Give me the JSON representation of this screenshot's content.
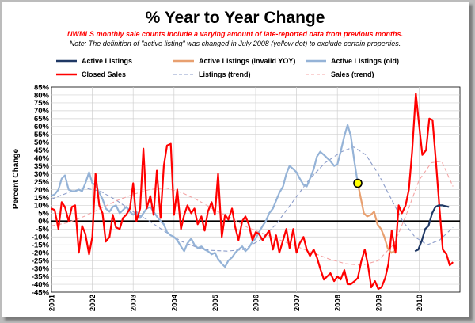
{
  "chart_data": {
    "type": "line",
    "title": "% Year to Year Change",
    "subtitle_note": "NWMLS monthly sale counts include a varying amount of late-reported data from previous months.",
    "definition_note": "Note: The definition of \"active listing\" was changed in July 2008  (yellow dot) to exclude certain properties.",
    "ylabel": "Percent Change",
    "xlabel": "",
    "ylim": [
      -45,
      85
    ],
    "yticks": [
      "85%",
      "80%",
      "75%",
      "70%",
      "65%",
      "60%",
      "55%",
      "50%",
      "45%",
      "40%",
      "35%",
      "30%",
      "25%",
      "20%",
      "15%",
      "10%",
      "5%",
      "0%",
      "-5%",
      "-10%",
      "-15%",
      "-20%",
      "-25%",
      "-30%",
      "-35%",
      "-40%",
      "-45%"
    ],
    "xticks": [
      "2001",
      "2002",
      "2003",
      "2004",
      "2005",
      "2006",
      "2007",
      "2008",
      "2009",
      "2010"
    ],
    "xlim": [
      2001.0,
      2011.0
    ],
    "grid": true,
    "legend_placement": "top",
    "series": [
      {
        "name": "Active Listings",
        "color": "#1f3864",
        "style": "solid",
        "points": [
          [
            2009.9,
            -19
          ],
          [
            2009.98,
            -18
          ],
          [
            2010.07,
            -12
          ],
          [
            2010.15,
            -5
          ],
          [
            2010.23,
            -3
          ],
          [
            2010.32,
            5
          ],
          [
            2010.4,
            9
          ],
          [
            2010.48,
            10
          ],
          [
            2010.57,
            10
          ],
          [
            2010.65,
            9.5
          ],
          [
            2010.73,
            9
          ]
        ]
      },
      {
        "name": "Active Listings (invalid YOY)",
        "color": "#e8a070",
        "style": "solid",
        "points": [
          [
            2008.5,
            24
          ],
          [
            2008.57,
            15
          ],
          [
            2008.65,
            5
          ],
          [
            2008.73,
            3
          ],
          [
            2008.82,
            4
          ],
          [
            2008.9,
            6
          ],
          [
            2008.98,
            -2
          ],
          [
            2009.07,
            -5
          ],
          [
            2009.15,
            -10
          ],
          [
            2009.23,
            -17
          ],
          [
            2009.32,
            -20
          ],
          [
            2009.4,
            -19
          ]
        ]
      },
      {
        "name": "Active Listings (old)",
        "color": "#95b3d7",
        "style": "solid",
        "points": [
          [
            2001.0,
            16
          ],
          [
            2001.08,
            17
          ],
          [
            2001.17,
            20
          ],
          [
            2001.25,
            27
          ],
          [
            2001.33,
            29
          ],
          [
            2001.42,
            20
          ],
          [
            2001.5,
            19
          ],
          [
            2001.58,
            19
          ],
          [
            2001.67,
            20
          ],
          [
            2001.75,
            19
          ],
          [
            2001.83,
            24
          ],
          [
            2001.92,
            31
          ],
          [
            2002.0,
            24
          ],
          [
            2002.08,
            23
          ],
          [
            2002.17,
            18
          ],
          [
            2002.25,
            14
          ],
          [
            2002.33,
            8
          ],
          [
            2002.42,
            6
          ],
          [
            2002.5,
            9
          ],
          [
            2002.58,
            10
          ],
          [
            2002.67,
            5
          ],
          [
            2002.75,
            7
          ],
          [
            2002.83,
            9
          ],
          [
            2002.92,
            6
          ],
          [
            2003.0,
            4
          ],
          [
            2003.08,
            6
          ],
          [
            2003.17,
            2
          ],
          [
            2003.25,
            5
          ],
          [
            2003.33,
            8
          ],
          [
            2003.42,
            9
          ],
          [
            2003.5,
            6
          ],
          [
            2003.58,
            3
          ],
          [
            2003.67,
            0
          ],
          [
            2003.75,
            -2
          ],
          [
            2003.83,
            -7
          ],
          [
            2003.92,
            -9
          ],
          [
            2004.0,
            -10
          ],
          [
            2004.08,
            -12
          ],
          [
            2004.17,
            -16
          ],
          [
            2004.25,
            -19
          ],
          [
            2004.33,
            -14
          ],
          [
            2004.42,
            -11
          ],
          [
            2004.5,
            -15
          ],
          [
            2004.58,
            -17
          ],
          [
            2004.67,
            -16
          ],
          [
            2004.75,
            -18
          ],
          [
            2004.83,
            -19
          ],
          [
            2004.92,
            -21
          ],
          [
            2005.0,
            -20
          ],
          [
            2005.08,
            -24
          ],
          [
            2005.17,
            -27
          ],
          [
            2005.25,
            -29
          ],
          [
            2005.33,
            -25
          ],
          [
            2005.42,
            -23
          ],
          [
            2005.5,
            -20
          ],
          [
            2005.58,
            -18
          ],
          [
            2005.67,
            -16
          ],
          [
            2005.75,
            -19
          ],
          [
            2005.83,
            -17
          ],
          [
            2005.92,
            -13
          ],
          [
            2006.0,
            -11
          ],
          [
            2006.08,
            -7
          ],
          [
            2006.17,
            -3
          ],
          [
            2006.25,
            0
          ],
          [
            2006.33,
            5
          ],
          [
            2006.42,
            8
          ],
          [
            2006.5,
            13
          ],
          [
            2006.58,
            18
          ],
          [
            2006.67,
            22
          ],
          [
            2006.75,
            30
          ],
          [
            2006.83,
            35
          ],
          [
            2006.92,
            33
          ],
          [
            2007.0,
            31
          ],
          [
            2007.08,
            27
          ],
          [
            2007.17,
            23
          ],
          [
            2007.25,
            22
          ],
          [
            2007.33,
            27
          ],
          [
            2007.42,
            33
          ],
          [
            2007.5,
            41
          ],
          [
            2007.58,
            44
          ],
          [
            2007.67,
            42
          ],
          [
            2007.75,
            40
          ],
          [
            2007.83,
            38
          ],
          [
            2007.92,
            35
          ],
          [
            2008.0,
            36
          ],
          [
            2008.08,
            44
          ],
          [
            2008.17,
            54
          ],
          [
            2008.25,
            61
          ],
          [
            2008.33,
            54
          ],
          [
            2008.42,
            37
          ],
          [
            2008.5,
            24
          ]
        ]
      },
      {
        "name": "Closed Sales",
        "color": "#ff0000",
        "style": "solid",
        "points": [
          [
            2001.0,
            8
          ],
          [
            2001.08,
            7
          ],
          [
            2001.17,
            -5
          ],
          [
            2001.25,
            12
          ],
          [
            2001.33,
            9
          ],
          [
            2001.42,
            0
          ],
          [
            2001.5,
            9
          ],
          [
            2001.58,
            10
          ],
          [
            2001.67,
            -20
          ],
          [
            2001.75,
            -3
          ],
          [
            2001.83,
            -8
          ],
          [
            2001.92,
            -21
          ],
          [
            2002.0,
            -10
          ],
          [
            2002.08,
            30
          ],
          [
            2002.17,
            10
          ],
          [
            2002.25,
            5
          ],
          [
            2002.33,
            -13
          ],
          [
            2002.42,
            -10
          ],
          [
            2002.5,
            4
          ],
          [
            2002.58,
            -4
          ],
          [
            2002.67,
            -5
          ],
          [
            2002.75,
            2
          ],
          [
            2002.83,
            4
          ],
          [
            2002.92,
            8
          ],
          [
            2003.0,
            24
          ],
          [
            2003.08,
            0
          ],
          [
            2003.17,
            8
          ],
          [
            2003.25,
            46
          ],
          [
            2003.33,
            8
          ],
          [
            2003.42,
            16
          ],
          [
            2003.5,
            4
          ],
          [
            2003.58,
            32
          ],
          [
            2003.67,
            2
          ],
          [
            2003.75,
            35
          ],
          [
            2003.83,
            48
          ],
          [
            2003.92,
            49
          ],
          [
            2004.0,
            4
          ],
          [
            2004.08,
            20
          ],
          [
            2004.17,
            -5
          ],
          [
            2004.25,
            4
          ],
          [
            2004.33,
            10
          ],
          [
            2004.42,
            5
          ],
          [
            2004.5,
            8
          ],
          [
            2004.58,
            -2
          ],
          [
            2004.67,
            3
          ],
          [
            2004.75,
            -6
          ],
          [
            2004.83,
            6
          ],
          [
            2004.92,
            12
          ],
          [
            2005.0,
            4
          ],
          [
            2005.08,
            30
          ],
          [
            2005.17,
            -10
          ],
          [
            2005.25,
            4
          ],
          [
            2005.33,
            1
          ],
          [
            2005.42,
            8
          ],
          [
            2005.5,
            -4
          ],
          [
            2005.58,
            -12
          ],
          [
            2005.67,
            0
          ],
          [
            2005.75,
            3
          ],
          [
            2005.83,
            -2
          ],
          [
            2005.92,
            -12
          ],
          [
            2006.0,
            -7
          ],
          [
            2006.08,
            -8
          ],
          [
            2006.17,
            -12
          ],
          [
            2006.25,
            -9
          ],
          [
            2006.33,
            -6
          ],
          [
            2006.42,
            -18
          ],
          [
            2006.5,
            -9
          ],
          [
            2006.58,
            -20
          ],
          [
            2006.67,
            -12
          ],
          [
            2006.75,
            -5
          ],
          [
            2006.83,
            -17
          ],
          [
            2006.92,
            -5
          ],
          [
            2007.0,
            -20
          ],
          [
            2007.08,
            -14
          ],
          [
            2007.17,
            -10
          ],
          [
            2007.25,
            -18
          ],
          [
            2007.33,
            -22
          ],
          [
            2007.42,
            -18
          ],
          [
            2007.5,
            -23
          ],
          [
            2007.58,
            -30
          ],
          [
            2007.67,
            -37
          ],
          [
            2007.75,
            -35
          ],
          [
            2007.83,
            -33
          ],
          [
            2007.92,
            -38
          ],
          [
            2008.0,
            -35
          ],
          [
            2008.08,
            -37
          ],
          [
            2008.17,
            -31
          ],
          [
            2008.25,
            -40
          ],
          [
            2008.33,
            -40
          ],
          [
            2008.42,
            -38
          ],
          [
            2008.5,
            -36
          ],
          [
            2008.58,
            -26
          ],
          [
            2008.67,
            -18
          ],
          [
            2008.75,
            -28
          ],
          [
            2008.83,
            -42
          ],
          [
            2008.92,
            -38
          ],
          [
            2009.0,
            -43
          ],
          [
            2009.08,
            -42
          ],
          [
            2009.17,
            -36
          ],
          [
            2009.25,
            -27
          ],
          [
            2009.33,
            -6
          ],
          [
            2009.42,
            -20
          ],
          [
            2009.5,
            10
          ],
          [
            2009.58,
            5
          ],
          [
            2009.67,
            10
          ],
          [
            2009.75,
            20
          ],
          [
            2009.83,
            44
          ],
          [
            2009.92,
            81
          ],
          [
            2010.0,
            61
          ],
          [
            2010.08,
            42
          ],
          [
            2010.17,
            45
          ],
          [
            2010.25,
            65
          ],
          [
            2010.33,
            64
          ],
          [
            2010.42,
            35
          ],
          [
            2010.5,
            8
          ],
          [
            2010.58,
            -18
          ],
          [
            2010.67,
            -21
          ],
          [
            2010.75,
            -28
          ],
          [
            2010.83,
            -26
          ]
        ]
      },
      {
        "name": "Listings (trend)",
        "color": "#8a9bc9",
        "style": "dashed",
        "points": [
          [
            2001.0,
            14
          ],
          [
            2001.4,
            18
          ],
          [
            2001.8,
            21
          ],
          [
            2002.2,
            19
          ],
          [
            2002.6,
            13
          ],
          [
            2003.0,
            6
          ],
          [
            2003.4,
            0
          ],
          [
            2003.8,
            -7
          ],
          [
            2004.2,
            -13
          ],
          [
            2004.6,
            -17
          ],
          [
            2004.9,
            -18.5
          ],
          [
            2005.3,
            -19
          ],
          [
            2005.7,
            -18
          ],
          [
            2006.1,
            -12
          ],
          [
            2006.5,
            -2
          ],
          [
            2006.9,
            12
          ],
          [
            2007.3,
            26
          ],
          [
            2007.7,
            37
          ],
          [
            2008.1,
            44
          ],
          [
            2008.4,
            47
          ],
          [
            2008.7,
            42
          ],
          [
            2009.0,
            30
          ],
          [
            2009.3,
            15
          ],
          [
            2009.6,
            0
          ],
          [
            2009.9,
            -10
          ],
          [
            2010.2,
            -15
          ],
          [
            2010.5,
            -12
          ],
          [
            2010.83,
            -4
          ]
        ]
      },
      {
        "name": "Sales (trend)",
        "color": "#f4a4a4",
        "style": "dashed",
        "points": [
          [
            2001.0,
            -3
          ],
          [
            2001.4,
            -1
          ],
          [
            2001.8,
            3
          ],
          [
            2002.2,
            8
          ],
          [
            2002.6,
            13
          ],
          [
            2003.0,
            17
          ],
          [
            2003.4,
            20
          ],
          [
            2003.8,
            21
          ],
          [
            2004.2,
            18
          ],
          [
            2004.6,
            13
          ],
          [
            2005.0,
            7
          ],
          [
            2005.4,
            2
          ],
          [
            2005.8,
            -4
          ],
          [
            2006.2,
            -8
          ],
          [
            2006.6,
            -12
          ],
          [
            2007.0,
            -16
          ],
          [
            2007.4,
            -20
          ],
          [
            2007.8,
            -24
          ],
          [
            2008.2,
            -27
          ],
          [
            2008.6,
            -28
          ],
          [
            2009.0,
            -25
          ],
          [
            2009.4,
            -14
          ],
          [
            2009.7,
            5
          ],
          [
            2010.0,
            26
          ],
          [
            2010.3,
            37
          ],
          [
            2010.55,
            38
          ],
          [
            2010.83,
            22
          ]
        ]
      }
    ],
    "highlight_point": {
      "label": "yellow dot",
      "x": 2008.5,
      "y": 24,
      "color": "#ffff00"
    }
  }
}
